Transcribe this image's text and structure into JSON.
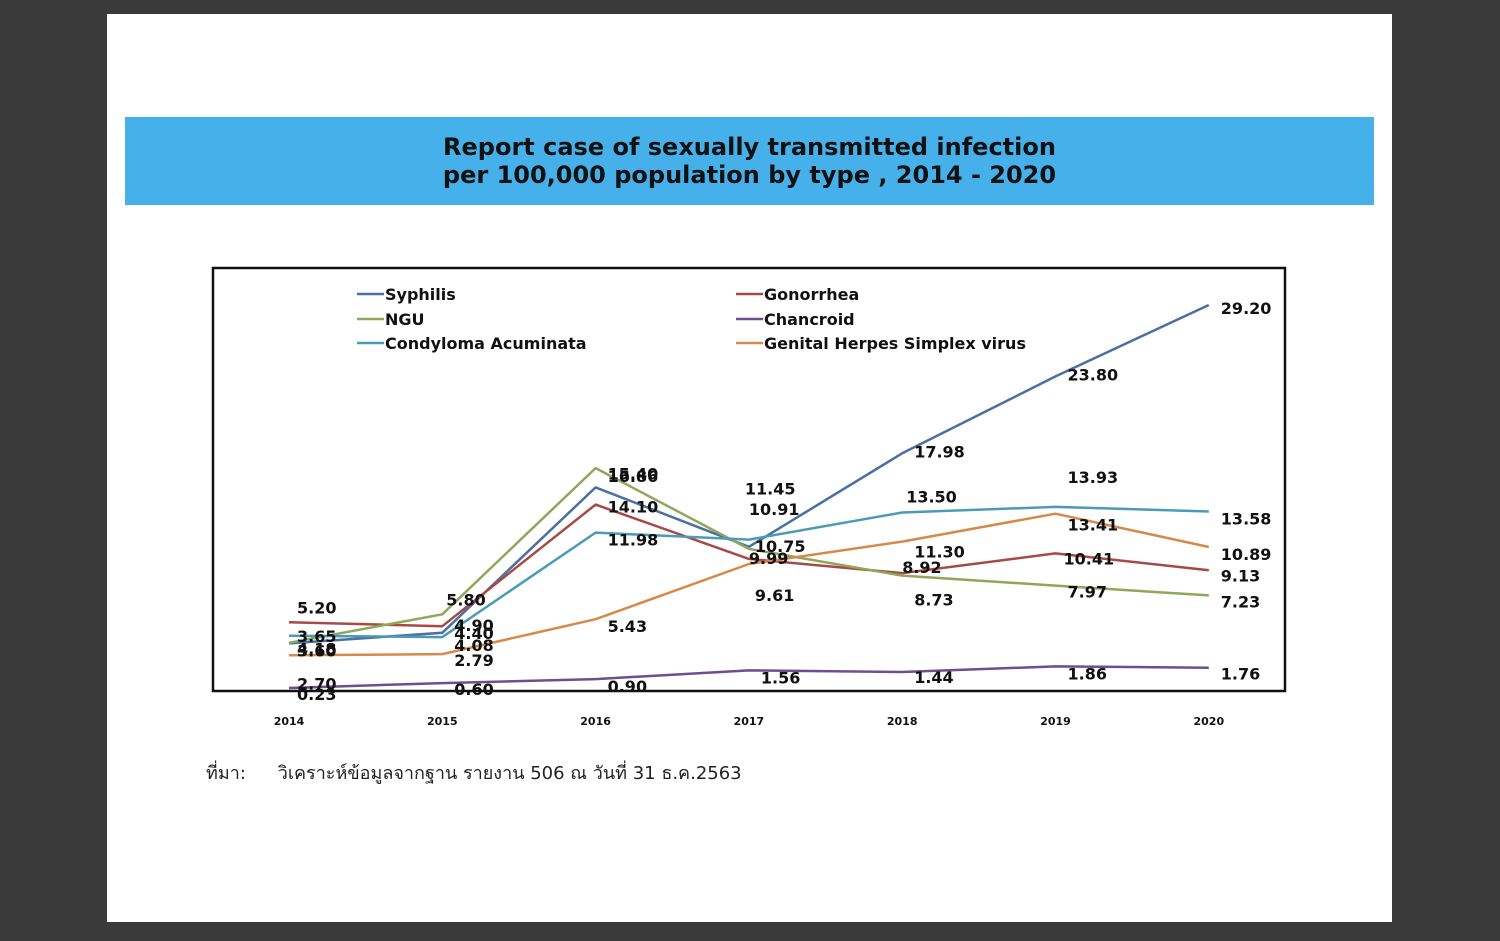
{
  "title": {
    "line1": "Report case of sexually transmitted infection",
    "line2": "per 100,000 population by type , 2014 - 2020"
  },
  "source": {
    "label": "ที่มา:",
    "text": "วิเคราะห์ข้อมูลจากฐาน รายงาน 506 ณ วันที่ 31 ธ.ค.2563"
  },
  "chart_data": {
    "type": "line",
    "title": "Report case of sexually transmitted infection per 100,000 population by type , 2014 - 2020",
    "x": [
      "2014",
      "2015",
      "2016",
      "2017",
      "2018",
      "2019",
      "2020"
    ],
    "ylim": [
      0,
      32
    ],
    "grid": false,
    "legend": "top",
    "series": [
      {
        "name": "Syphilis",
        "color": "#4a6fa0",
        "values": [
          3.6,
          4.4,
          15.4,
          10.91,
          17.98,
          23.8,
          29.2
        ],
        "labels": [
          "3.60",
          "4.40",
          "15.40",
          "10.91",
          "17.98",
          "23.80",
          "29.20"
        ]
      },
      {
        "name": "Gonorrhea",
        "color": "#a74a47",
        "values": [
          5.2,
          4.9,
          14.1,
          9.99,
          8.92,
          10.41,
          9.13
        ],
        "labels": [
          "5.20",
          "4.90",
          "14.10",
          "9.99",
          "8.92",
          "10.41",
          "9.13"
        ]
      },
      {
        "name": "NGU",
        "color": "#8fa759",
        "values": [
          3.65,
          5.8,
          16.86,
          10.75,
          8.73,
          7.97,
          7.23
        ],
        "labels": [
          "3.65",
          "5.80",
          "16.86",
          "10.75",
          "8.73",
          "7.97",
          "7.23"
        ]
      },
      {
        "name": "Chancroid",
        "color": "#6d4f8f",
        "values": [
          0.23,
          0.6,
          0.9,
          1.56,
          1.44,
          1.86,
          1.76
        ],
        "labels": [
          "0.23",
          "0.60",
          "0.90",
          "1.56",
          "1.44",
          "1.86",
          "1.76"
        ]
      },
      {
        "name": "Condyloma Acuminata",
        "color": "#4a9bb5",
        "values": [
          4.18,
          4.08,
          11.98,
          11.45,
          13.5,
          13.93,
          13.58
        ],
        "labels": [
          "4.18",
          "4.08",
          "11.98",
          "11.45",
          "13.50",
          "13.93",
          "13.58"
        ]
      },
      {
        "name": "Genital Herpes Simplex virus",
        "color": "#d6894a",
        "values": [
          2.7,
          2.79,
          5.43,
          9.61,
          11.3,
          13.41,
          10.89
        ],
        "labels": [
          "2.70",
          "2.79",
          "5.43",
          "9.61",
          "11.30",
          "13.41",
          "10.89"
        ]
      }
    ]
  }
}
